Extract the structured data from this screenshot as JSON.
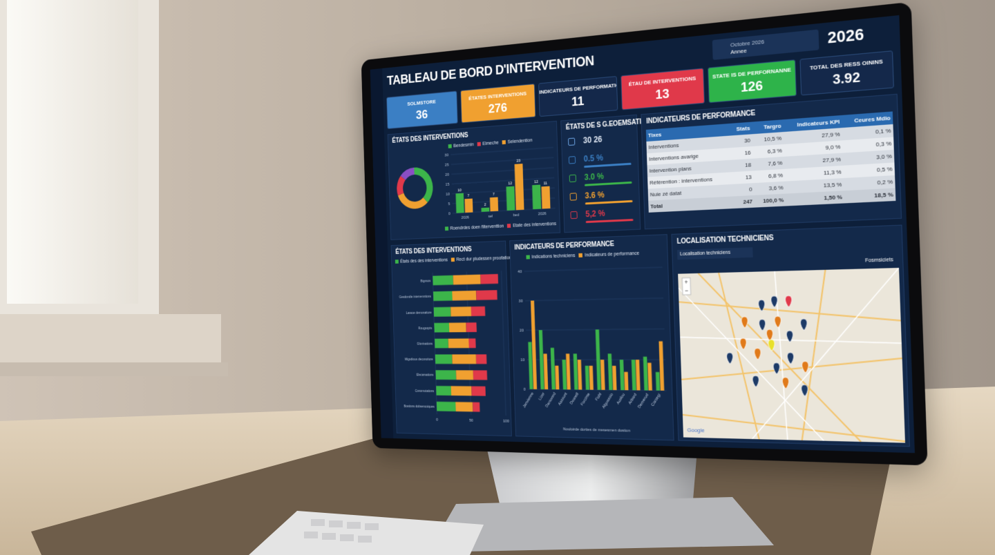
{
  "header": {
    "title": "TABLEAU DE BORD D'INTERVENTION",
    "date_label": "Octobre 2026",
    "date_value": "Annee",
    "year": "2026"
  },
  "kpis": [
    {
      "label": "SOLMSTORE",
      "value": 36,
      "color": "#3b7fc4"
    },
    {
      "label": "ÉTATES INTERVENTIONS",
      "value": 276,
      "color": "#f0a030"
    },
    {
      "label": "INDICATEURS DE PERFORMATION",
      "value": 11,
      "color": "#14284a"
    },
    {
      "label": "ÉTAU DE INTERVENTIONS",
      "value": 13,
      "color": "#e0394a"
    },
    {
      "label": "STATE IS DE PERFORNANNE",
      "value": 126,
      "color": "#2eb34a"
    },
    {
      "label": "TOTAL DES RESS OININS",
      "value": 3.92,
      "color": "#14284a"
    }
  ],
  "status_panel": {
    "title": "ÉTATS DES INTERVENTIONS",
    "donut": {
      "type": "pie",
      "values": [
        38,
        32,
        16,
        14
      ],
      "colors": [
        "#3cb54a",
        "#f0a030",
        "#e0394a",
        "#8a4fc4"
      ]
    },
    "bars": {
      "type": "bar",
      "legend": [
        {
          "name": "Bendesmin",
          "color": "#3cb54a"
        },
        {
          "name": "Elmeche",
          "color": "#e0394a"
        },
        {
          "name": "Selendention",
          "color": "#f0a030"
        }
      ],
      "categories": [
        "2026",
        "sel",
        "bed",
        "2026"
      ],
      "series": [
        {
          "color": "#3cb54a",
          "values": [
            10,
            2,
            12,
            12
          ]
        },
        {
          "color": "#f0a030",
          "values": [
            7,
            7,
            23,
            11
          ]
        }
      ],
      "ylim": [
        0,
        30
      ],
      "yticks": [
        0,
        5,
        10,
        15,
        20,
        25,
        30
      ],
      "footer_legend": [
        {
          "name": "Roendrdes doen filterventtion",
          "color": "#3cb54a"
        },
        {
          "name": "Etate des interventions",
          "color": "#e0394a"
        }
      ]
    }
  },
  "metrics_panel": {
    "title": "ÉTATS DE S G.EOEMSATIF",
    "items": [
      {
        "value": "30 26",
        "color": "#6fa8e8"
      },
      {
        "value": "0.5 %",
        "color": "#3b7fc4"
      },
      {
        "value": "3.0 %",
        "color": "#3cb54a"
      },
      {
        "value": "3.6 %",
        "color": "#f0a030"
      },
      {
        "value": "5,2 %",
        "color": "#e0394a"
      }
    ]
  },
  "performance_table": {
    "title": "INDICATEURS DE PERFORMANCE",
    "columns": [
      "Tixes",
      "Stats",
      "Targro",
      "Indicateurs KPI",
      "Ceures Mdio"
    ],
    "rows": [
      [
        "Interventions",
        "30",
        "10,5 %",
        "27,9 %",
        "0,1 %"
      ],
      [
        "Interventions avarige",
        "16",
        "6,3 %",
        "9,0 %",
        "0,3 %"
      ],
      [
        "Intervention plans",
        "18",
        "7,6 %",
        "27,9 %",
        "3,0 %"
      ],
      [
        "Référention : interventions",
        "13",
        "6,8 %",
        "11,3 %",
        "0,5 %"
      ],
      [
        "Nuie zé datat",
        "0",
        "3,6 %",
        "13,5 %",
        "0,2 %"
      ],
      [
        "Total",
        "247",
        "100,0 %",
        "1,50 %",
        "18,5 %"
      ]
    ]
  },
  "intervention_bars": {
    "type": "bar",
    "title": "ÉTATS DES INTERVENTIONS",
    "legend": [
      {
        "name": "États des des interventions",
        "color": "#3cb54a"
      },
      {
        "name": "Rect dur pludessen proofations",
        "color": "#f0a030"
      }
    ],
    "categories": [
      "Bignsos",
      "Gesdondie intervenntions",
      "Lassoe demonaiture",
      "Rougoopts",
      "Glonisations",
      "Migsdious deconoiture",
      "Elecarsations",
      "Conomutations",
      "Bostions dobsencoiques"
    ],
    "series": [
      {
        "color": "#3cb54a",
        "values": [
          30,
          28,
          25,
          22,
          20,
          25,
          30,
          22,
          28
        ]
      },
      {
        "color": "#f0a030",
        "values": [
          40,
          35,
          30,
          25,
          30,
          35,
          25,
          30,
          25
        ]
      },
      {
        "color": "#e0394a",
        "values": [
          25,
          30,
          20,
          15,
          10,
          15,
          20,
          20,
          10
        ]
      }
    ],
    "xlim": [
      0,
      100
    ],
    "xticks": [
      0,
      50,
      100
    ]
  },
  "performance_columns": {
    "type": "bar",
    "title": "INDICATEURS DE PERFORMANCE",
    "x_label": "Nouloirde dorties de mesesmen dustion",
    "categories": [
      "Janvienne",
      "Lizer",
      "Darsonnd",
      "Aassunt",
      "Dosnell",
      "Forcinte",
      "Fishl",
      "Alguassio",
      "Auslou",
      "Arbard",
      "Demerud",
      "Carsegi"
    ],
    "series": [
      {
        "name": "Indications techniciens",
        "color": "#3cb54a",
        "values": [
          16,
          20,
          14,
          10,
          12,
          8,
          20,
          12,
          10,
          10,
          11,
          6
        ]
      },
      {
        "name": "Indicateurs de performance",
        "color": "#f0a030",
        "values": [
          30,
          12,
          8,
          12,
          10,
          8,
          10,
          8,
          6,
          10,
          9,
          16
        ]
      }
    ],
    "ylim": [
      0,
      40
    ],
    "yticks": [
      0,
      10,
      20,
      30,
      40
    ]
  },
  "map_panel": {
    "title": "LOCALISATION TECHNICIENS",
    "dropdown": "Localisation techniciens",
    "filter": "Fosmsiciets",
    "credit": "Google",
    "zoom_in": "+",
    "zoom_out": "−"
  }
}
